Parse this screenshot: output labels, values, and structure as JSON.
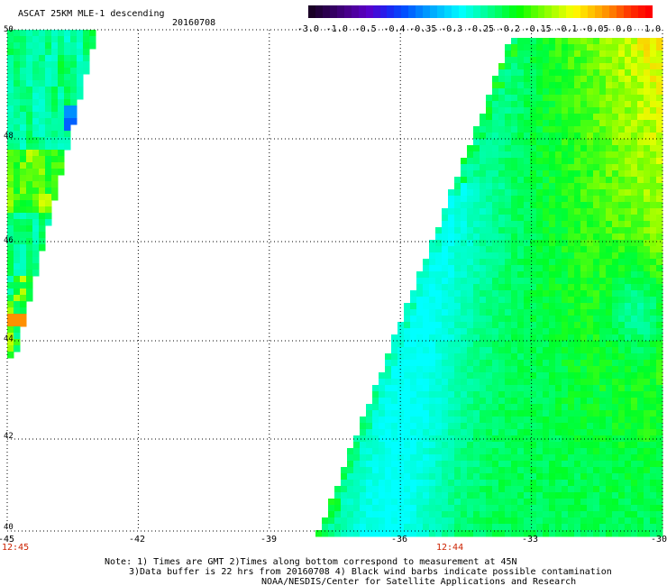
{
  "title": "ASCAT 25KM MLE-1 descending",
  "date": "20160708",
  "colorbar": {
    "labels": [
      "-3.0",
      "-1.0",
      "-0.5",
      "-0.4",
      "-0.35",
      "-0.3",
      "-0.25",
      "-0.2",
      "-0.15",
      "-0.1",
      "-0.05",
      "0.0",
      "1.0"
    ],
    "colors": [
      "#1a0026",
      "#3a0073",
      "#5a00b8",
      "#0000e6",
      "#0060ff",
      "#00b0ff",
      "#00ffff",
      "#00ff80",
      "#00ff00",
      "#a0ff00",
      "#ffff00",
      "#ff8000",
      "#ff0000"
    ]
  },
  "map": {
    "lon_ticks": [
      -45,
      -42,
      -39,
      -36,
      -33,
      -30
    ],
    "lon_labels": [
      "-45",
      "-42",
      "-39",
      "-36",
      "-33",
      "-30"
    ],
    "lat_ticks": [
      50,
      48,
      46,
      44,
      42,
      40
    ],
    "lat_labels": [
      "50",
      "48",
      "46",
      "44",
      "42",
      "40"
    ],
    "time_labels": [
      "12:45",
      "12:44"
    ]
  },
  "notes": {
    "line1": "Note: 1) Times are GMT 2)Times along bottom correspond to measurement at 45N",
    "line2": "3)Data buffer is 22 hrs from 20160708 4) Black wind barbs indicate possible contamination",
    "line3": "NOAA/NESDIS/Center for Satellite Applications and Research"
  }
}
